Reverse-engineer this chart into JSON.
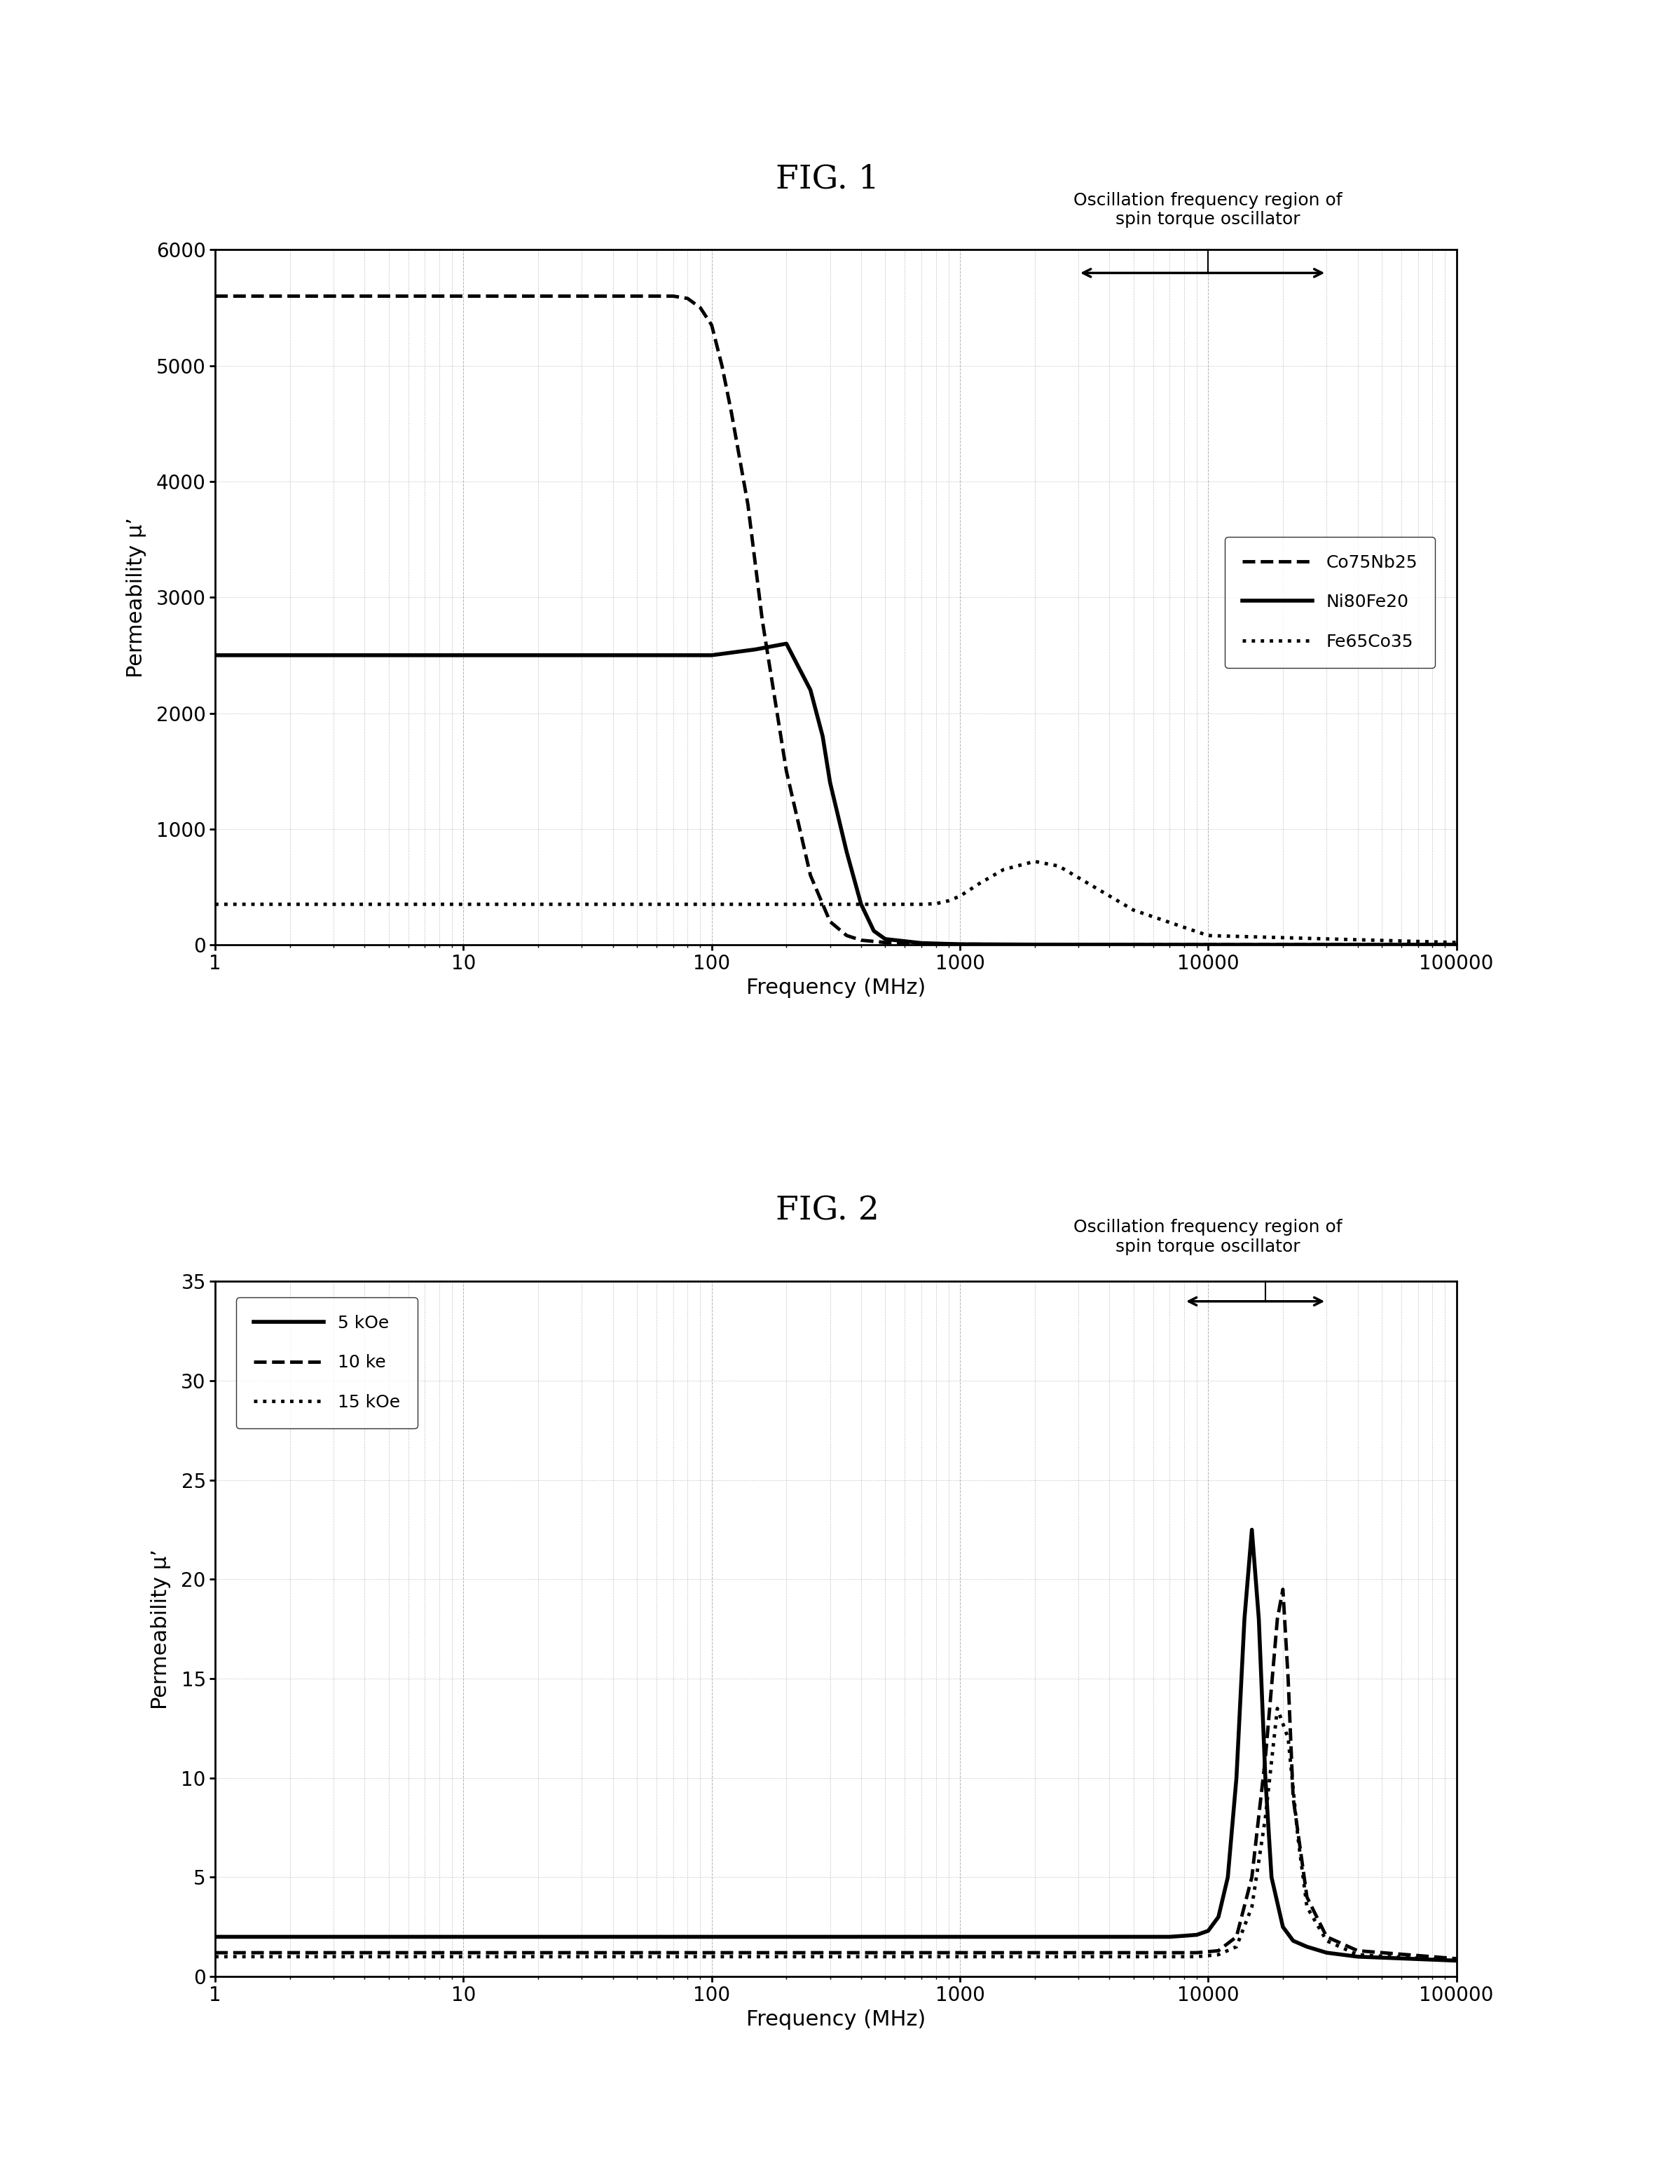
{
  "fig1": {
    "title": "FIG. 1",
    "xlabel": "Frequency (MHz)",
    "ylabel": "Permeability μ’",
    "ylim": [
      0,
      6000
    ],
    "yticks": [
      0,
      1000,
      2000,
      3000,
      4000,
      5000,
      6000
    ],
    "annotation": "Oscillation frequency region of\nspin torque oscillator",
    "legend_labels": [
      "Co75Nb25",
      "Ni80Fe20",
      "Fe65Co35"
    ],
    "series": {
      "Co75Nb25": {
        "x": [
          1,
          2,
          3,
          5,
          7,
          10,
          20,
          30,
          50,
          70,
          80,
          90,
          100,
          110,
          120,
          140,
          160,
          200,
          250,
          300,
          350,
          400,
          500,
          700,
          1000,
          2000,
          5000,
          10000,
          100000
        ],
        "y": [
          5600,
          5600,
          5600,
          5600,
          5600,
          5600,
          5600,
          5600,
          5600,
          5600,
          5580,
          5500,
          5350,
          5000,
          4600,
          3800,
          2800,
          1500,
          600,
          200,
          80,
          40,
          20,
          10,
          5,
          3,
          2,
          2,
          2
        ]
      },
      "Ni80Fe20": {
        "x": [
          1,
          2,
          3,
          5,
          10,
          20,
          50,
          100,
          150,
          200,
          250,
          280,
          300,
          350,
          400,
          450,
          500,
          700,
          1000,
          2000,
          5000,
          10000,
          100000
        ],
        "y": [
          2500,
          2500,
          2500,
          2500,
          2500,
          2500,
          2500,
          2500,
          2550,
          2600,
          2200,
          1800,
          1400,
          800,
          350,
          120,
          50,
          15,
          5,
          2,
          1,
          0.5,
          0.5
        ]
      },
      "Fe65Co35": {
        "x": [
          1,
          2,
          3,
          5,
          10,
          20,
          50,
          100,
          200,
          300,
          400,
          500,
          600,
          700,
          800,
          900,
          1000,
          1200,
          1500,
          2000,
          2500,
          3000,
          5000,
          10000,
          100000
        ],
        "y": [
          350,
          350,
          350,
          350,
          350,
          350,
          350,
          350,
          350,
          350,
          350,
          350,
          350,
          350,
          355,
          380,
          420,
          530,
          650,
          720,
          680,
          580,
          300,
          80,
          20
        ]
      }
    }
  },
  "fig2": {
    "title": "FIG. 2",
    "xlabel": "Frequency (MHz)",
    "ylabel": "Permeability μ’",
    "ylim": [
      0,
      35
    ],
    "yticks": [
      0,
      5,
      10,
      15,
      20,
      25,
      30,
      35
    ],
    "annotation": "Oscillation frequency region of\nspin torque oscillator",
    "legend_labels": [
      "5 kOe",
      "10 ke",
      "15 kOe"
    ],
    "series": {
      "5kOe": {
        "x": [
          1,
          10,
          100,
          1000,
          3000,
          5000,
          7000,
          8000,
          9000,
          10000,
          11000,
          12000,
          13000,
          14000,
          15000,
          16000,
          17000,
          18000,
          20000,
          22000,
          25000,
          30000,
          40000,
          100000
        ],
        "y": [
          2.0,
          2.0,
          2.0,
          2.0,
          2.0,
          2.0,
          2.0,
          2.05,
          2.1,
          2.3,
          3.0,
          5.0,
          10.0,
          18.0,
          22.5,
          18.0,
          10.0,
          5.0,
          2.5,
          1.8,
          1.5,
          1.2,
          1.0,
          0.8
        ]
      },
      "10kOe": {
        "x": [
          1,
          10,
          100,
          1000,
          3000,
          5000,
          7000,
          9000,
          11000,
          13000,
          15000,
          17000,
          19000,
          20000,
          21000,
          22000,
          25000,
          30000,
          40000,
          100000
        ],
        "y": [
          1.2,
          1.2,
          1.2,
          1.2,
          1.2,
          1.2,
          1.2,
          1.2,
          1.3,
          2.0,
          5.0,
          11.0,
          18.0,
          19.5,
          15.0,
          9.0,
          4.0,
          2.0,
          1.3,
          0.9
        ]
      },
      "15kOe": {
        "x": [
          1,
          10,
          100,
          1000,
          3000,
          5000,
          7000,
          9000,
          11000,
          13000,
          15000,
          17000,
          19000,
          21000,
          23000,
          25000,
          30000,
          40000,
          100000
        ],
        "y": [
          1.0,
          1.0,
          1.0,
          1.0,
          1.0,
          1.0,
          1.0,
          1.0,
          1.1,
          1.5,
          3.5,
          8.0,
          13.5,
          12.0,
          7.0,
          3.5,
          1.8,
          1.1,
          0.8
        ]
      }
    }
  },
  "background_color": "#ffffff",
  "line_color": "#000000",
  "grid_color": "#aaaaaa"
}
